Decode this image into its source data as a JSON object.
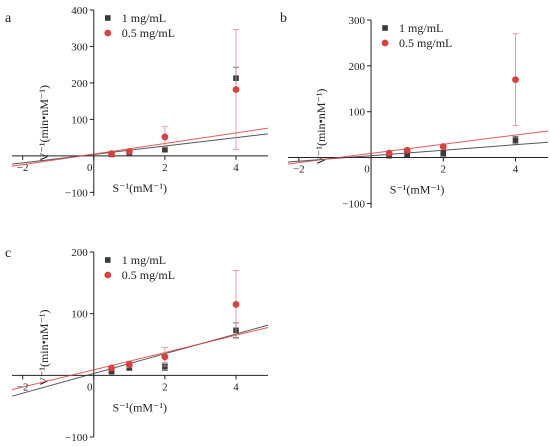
{
  "chart_data": [
    {
      "panel": "a",
      "type": "scatter",
      "xlabel": "S⁻¹(mM⁻¹)",
      "ylabel": "V⁻¹(min•nM⁻¹)",
      "xlim": [
        -2.3,
        4.9
      ],
      "ylim": [
        -110,
        400
      ],
      "xticks": [
        -2,
        0,
        2,
        4
      ],
      "yticks": [
        -100,
        0,
        100,
        200,
        300,
        400
      ],
      "grid": false,
      "legend": "top-left",
      "series": [
        {
          "name": "1 mg/mL",
          "color": "#3a3a3a",
          "marker": "square",
          "points": [
            {
              "x": 0.5,
              "y": 4,
              "err": 2
            },
            {
              "x": 1,
              "y": 9,
              "err": 3
            },
            {
              "x": 2,
              "y": 17,
              "err": 6
            },
            {
              "x": 4,
              "y": 213,
              "err": 30
            }
          ],
          "fit": {
            "slope": 11.5,
            "intercept": 4
          }
        },
        {
          "name": "0.5 mg/mL",
          "color": "#d94040",
          "marker": "circle",
          "points": [
            {
              "x": 0.5,
              "y": 6,
              "err": 2
            },
            {
              "x": 1,
              "y": 12,
              "err": 5
            },
            {
              "x": 2,
              "y": 52,
              "err": 28
            },
            {
              "x": 4,
              "y": 182,
              "err": 165
            }
          ],
          "fit": {
            "slope": 14.5,
            "intercept": 5
          }
        }
      ]
    },
    {
      "panel": "b",
      "type": "scatter",
      "xlabel": "S⁻¹(mM⁻¹)",
      "ylabel": "V⁻¹(min•nM⁻¹)",
      "xlim": [
        -2.3,
        4.9
      ],
      "ylim": [
        -110,
        300
      ],
      "xticks": [
        -2,
        0,
        2,
        4
      ],
      "yticks": [
        -100,
        0,
        100,
        200,
        300
      ],
      "grid": false,
      "legend": "top-left",
      "series": [
        {
          "name": "1 mg/mL",
          "color": "#3a3a3a",
          "marker": "square",
          "points": [
            {
              "x": 0.5,
              "y": 4,
              "err": 2
            },
            {
              "x": 1,
              "y": 6,
              "err": 3
            },
            {
              "x": 2,
              "y": 9,
              "err": 6
            },
            {
              "x": 4,
              "y": 38,
              "err": 8
            }
          ],
          "fit": {
            "slope": 6,
            "intercept": 4
          }
        },
        {
          "name": "0.5 mg/mL",
          "color": "#d94040",
          "marker": "circle",
          "points": [
            {
              "x": 0.5,
              "y": 10,
              "err": 3
            },
            {
              "x": 1,
              "y": 16,
              "err": 4
            },
            {
              "x": 2,
              "y": 24,
              "err": 5
            },
            {
              "x": 4,
              "y": 170,
              "err": 100
            }
          ],
          "fit": {
            "slope": 10,
            "intercept": 9
          }
        }
      ]
    },
    {
      "panel": "c",
      "type": "scatter",
      "xlabel": "S⁻¹(mM⁻¹)",
      "ylabel": "V⁻¹(min•nM⁻¹)",
      "xlim": [
        -2.3,
        4.9
      ],
      "ylim": [
        -100,
        200
      ],
      "xticks": [
        -2,
        0,
        2,
        4
      ],
      "yticks": [
        -100,
        0,
        100,
        200
      ],
      "grid": false,
      "legend": "top-left",
      "series": [
        {
          "name": "1 mg/mL",
          "color": "#3a3a3a",
          "marker": "square",
          "points": [
            {
              "x": 0.5,
              "y": 6,
              "err": 2
            },
            {
              "x": 1,
              "y": 12,
              "err": 3
            },
            {
              "x": 2,
              "y": 14,
              "err": 6
            },
            {
              "x": 4,
              "y": 73,
              "err": 12
            }
          ],
          "fit": {
            "slope": 16,
            "intercept": 3
          }
        },
        {
          "name": "0.5 mg/mL",
          "color": "#d94040",
          "marker": "circle",
          "points": [
            {
              "x": 0.5,
              "y": 12,
              "err": 3
            },
            {
              "x": 1,
              "y": 18,
              "err": 5
            },
            {
              "x": 2,
              "y": 30,
              "err": 15
            },
            {
              "x": 4,
              "y": 115,
              "err": 55
            }
          ],
          "fit": {
            "slope": 14,
            "intercept": 9
          }
        }
      ]
    }
  ]
}
